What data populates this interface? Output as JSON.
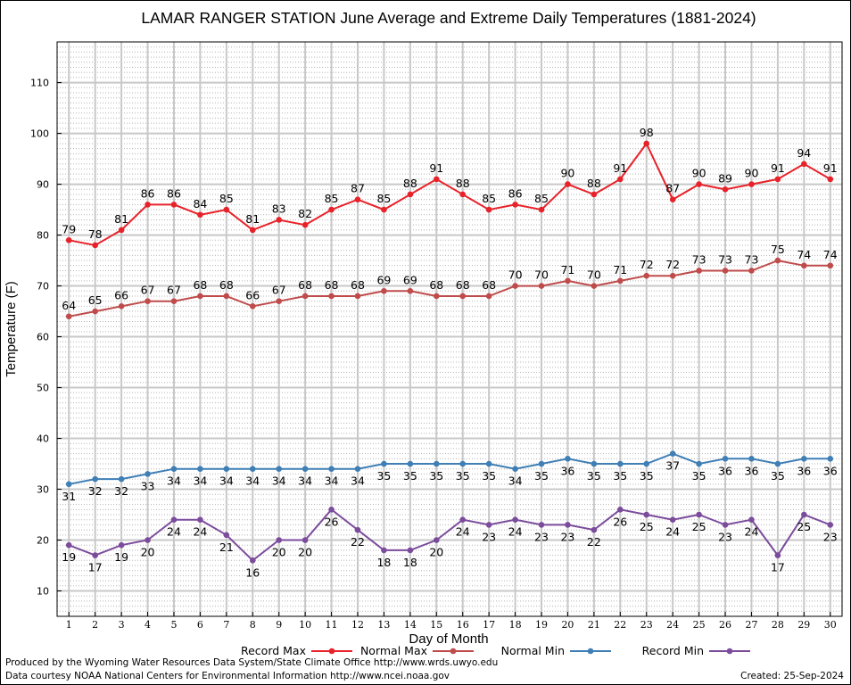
{
  "chart_data": {
    "type": "line",
    "title": "LAMAR RANGER STATION June Average and Extreme Daily Temperatures (1881-2024)",
    "xlabel": "Day of Month",
    "ylabel": "Temperature (F)",
    "x": [
      1,
      2,
      3,
      4,
      5,
      6,
      7,
      8,
      9,
      10,
      11,
      12,
      13,
      14,
      15,
      16,
      17,
      18,
      19,
      20,
      21,
      22,
      23,
      24,
      25,
      26,
      27,
      28,
      29,
      30
    ],
    "xlim": [
      0.55,
      30.45
    ],
    "ylim": [
      5,
      118
    ],
    "yticks": [
      10,
      20,
      30,
      40,
      50,
      60,
      70,
      80,
      90,
      100,
      110
    ],
    "grid": true,
    "legend_position": "bottom",
    "series": [
      {
        "name": "Record Max",
        "color": "#e8222a",
        "label_pos": "above",
        "values": [
          79,
          78,
          81,
          86,
          86,
          84,
          85,
          81,
          83,
          82,
          85,
          87,
          85,
          88,
          91,
          88,
          85,
          86,
          85,
          90,
          88,
          91,
          98,
          87,
          90,
          89,
          90,
          91,
          94,
          91
        ]
      },
      {
        "name": "Normal Max",
        "color": "#bf4b4b",
        "label_pos": "above",
        "values": [
          64,
          65,
          66,
          67,
          67,
          68,
          68,
          66,
          67,
          68,
          68,
          68,
          69,
          69,
          68,
          68,
          68,
          70,
          70,
          71,
          70,
          71,
          72,
          72,
          73,
          73,
          73,
          75,
          74,
          74
        ]
      },
      {
        "name": "Normal Min",
        "color": "#3f7fb5",
        "label_pos": "below",
        "values": [
          31,
          32,
          32,
          33,
          34,
          34,
          34,
          34,
          34,
          34,
          34,
          34,
          35,
          35,
          35,
          35,
          35,
          34,
          35,
          36,
          35,
          35,
          35,
          37,
          35,
          36,
          36,
          35,
          36,
          36
        ]
      },
      {
        "name": "Record Min",
        "color": "#7b4c9c",
        "label_pos": "below",
        "values": [
          19,
          17,
          19,
          20,
          24,
          24,
          21,
          16,
          20,
          20,
          26,
          22,
          18,
          18,
          20,
          24,
          23,
          24,
          23,
          23,
          22,
          26,
          25,
          24,
          25,
          23,
          24,
          17,
          25,
          23
        ]
      }
    ]
  },
  "footer": {
    "produced_by": "Produced by the Wyoming Water Resources Data System/State Climate Office http://www.wrds.uwyo.edu",
    "courtesy": "Data courtesy NOAA National Centers for Environmental Information http://www.ncei.noaa.gov",
    "created": "Created:  25-Sep-2024"
  }
}
